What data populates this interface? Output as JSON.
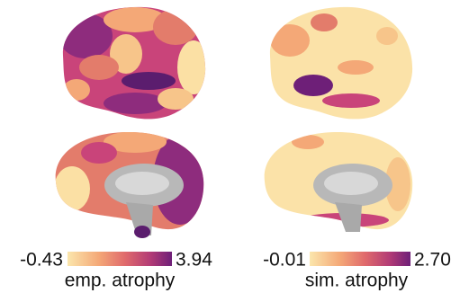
{
  "panels": [
    {
      "colorbar": {
        "min_label": "-0.43",
        "max_label": "3.94",
        "title": "emp. atrophy"
      }
    },
    {
      "colorbar": {
        "min_label": "-0.01",
        "max_label": "2.70",
        "title": "sim. atrophy"
      }
    }
  ]
}
